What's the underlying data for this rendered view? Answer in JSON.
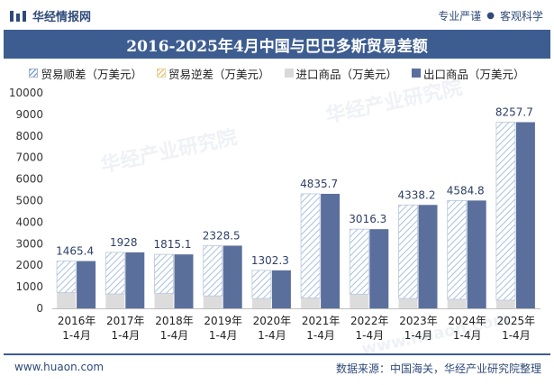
{
  "header": {
    "brand": "华经情报网",
    "slogan_left": "专业严谨",
    "slogan_sep": "●",
    "slogan_right": "客观科学"
  },
  "watermarks": [
    "华经产业研究院",
    "www.huaon.com"
  ],
  "footer": {
    "website": "www.huaon.com",
    "source": "数据来源：中国海关，华经产业研究院整理"
  },
  "colors": {
    "title_bg": "#3d5d91",
    "export": "#5b6f9c",
    "import": "#d9d9d9",
    "surplus_hatch": "#7fa3c8",
    "deficit_hatch": "#e3c87a"
  },
  "chart_data": {
    "type": "bar",
    "title": "2016-2025年4月中国与巴巴多斯贸易差额",
    "legend": [
      "贸易顺差（万美元）",
      "贸易逆差（万美元）",
      "进口商品（万美元）",
      "出口商品（万美元）"
    ],
    "legend_position": "top",
    "categories": [
      "2016年\n1-4月",
      "2017年\n1-4月",
      "2018年\n1-4月",
      "2019年\n1-4月",
      "2020年\n1-4月",
      "2021年\n1-4月",
      "2022年\n1-4月",
      "2023年\n1-4月",
      "2024年\n1-4月",
      "2025年\n1-4月"
    ],
    "category_labels": [
      [
        "2016年",
        "1-4月"
      ],
      [
        "2017年",
        "1-4月"
      ],
      [
        "2018年",
        "1-4月"
      ],
      [
        "2019年",
        "1-4月"
      ],
      [
        "2020年",
        "1-4月"
      ],
      [
        "2021年",
        "1-4月"
      ],
      [
        "2022年",
        "1-4月"
      ],
      [
        "2023年",
        "1-4月"
      ],
      [
        "2024年",
        "1-4月"
      ],
      [
        "2025年",
        "1-4月"
      ]
    ],
    "series": [
      {
        "name": "贸易顺差（万美元）",
        "values": [
          1465.4,
          1928,
          1815.1,
          2328.5,
          1302.3,
          4835.7,
          3016.3,
          4338.2,
          4584.8,
          8257.7
        ]
      },
      {
        "name": "贸易逆差（万美元）",
        "values": [
          0,
          0,
          0,
          0,
          0,
          0,
          0,
          0,
          0,
          0
        ]
      },
      {
        "name": "进口商品（万美元）",
        "values": [
          730,
          670,
          690,
          580,
          460,
          480,
          660,
          460,
          420,
          380
        ]
      },
      {
        "name": "出口商品（万美元）",
        "values": [
          2195,
          2600,
          2505,
          2910,
          1765,
          5315,
          3675,
          4800,
          5005,
          8640
        ]
      }
    ],
    "data_labels": [
      "1465.4",
      "1928",
      "1815.1",
      "2328.5",
      "1302.3",
      "4835.7",
      "3016.3",
      "4338.2",
      "4584.8",
      "8257.7"
    ],
    "ylim": [
      0,
      10000
    ],
    "yticks": [
      0,
      1000,
      2000,
      3000,
      4000,
      5000,
      6000,
      7000,
      8000,
      9000,
      10000
    ],
    "grid": false
  }
}
